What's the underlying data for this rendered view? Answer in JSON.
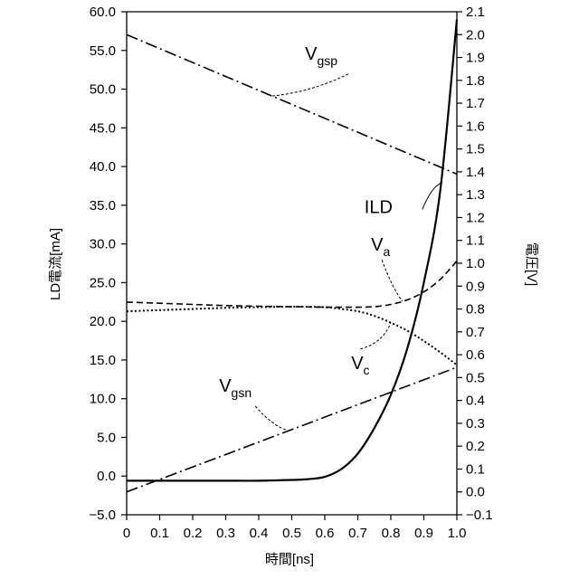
{
  "chart_data": {
    "type": "line",
    "xlabel": "時間[ns]",
    "ylabel_left": "LD電流[mA]",
    "ylabel_right": "電圧[V]",
    "xlim": [
      0,
      1.0
    ],
    "ylim_left": [
      -5.0,
      60.0
    ],
    "ylim_right": [
      -0.1,
      2.1
    ],
    "x_ticks": [
      "0",
      "0.1",
      "0.2",
      "0.3",
      "0.4",
      "0.5",
      "0.6",
      "0.7",
      "0.8",
      "0.9",
      "1.0"
    ],
    "y_left_ticks": [
      "60.0",
      "55.0",
      "50.0",
      "45.0",
      "40.0",
      "35.0",
      "30.0",
      "25.0",
      "20.0",
      "15.0",
      "10.0",
      "5.0",
      "0.0",
      "−5.0"
    ],
    "y_right_ticks": [
      "2.1",
      "2.0",
      "1.9",
      "1.8",
      "1.7",
      "1.6",
      "1.5",
      "1.4",
      "1.3",
      "1.2",
      "1.1",
      "1.0",
      "0.9",
      "0.8",
      "0.7",
      "0.6",
      "0.5",
      "0.4",
      "0.3",
      "0.2",
      "0.1",
      "0.0",
      "−0.1"
    ],
    "grid": false,
    "series": [
      {
        "name": "Vgsp",
        "label_main": "V",
        "label_sub": "gsp",
        "axis": "right",
        "style": "dashdot",
        "x": [
          0,
          1.0
        ],
        "y": [
          2.0,
          1.39
        ]
      },
      {
        "name": "Vgsn",
        "label_main": "V",
        "label_sub": "gsn",
        "axis": "right",
        "style": "dashdot",
        "x": [
          0,
          1.0
        ],
        "y": [
          0.0,
          0.545
        ]
      },
      {
        "name": "ILD",
        "label_main": "I",
        "label_sub": "LD",
        "axis": "left",
        "style": "solid",
        "x": [
          0,
          0.1,
          0.2,
          0.3,
          0.4,
          0.5,
          0.55,
          0.6,
          0.65,
          0.7,
          0.75,
          0.8,
          0.85,
          0.9,
          0.95,
          1.0
        ],
        "y": [
          -0.6,
          -0.6,
          -0.6,
          -0.6,
          -0.6,
          -0.5,
          -0.4,
          -0.1,
          0.9,
          2.9,
          6.2,
          10.5,
          16.5,
          25.0,
          37.0,
          59.0
        ]
      },
      {
        "name": "Va",
        "label_main": "V",
        "label_sub": "a",
        "axis": "right",
        "style": "dashed",
        "x": [
          0,
          0.1,
          0.2,
          0.3,
          0.4,
          0.5,
          0.6,
          0.7,
          0.75,
          0.8,
          0.85,
          0.9,
          0.95,
          1.0
        ],
        "y": [
          0.83,
          0.825,
          0.82,
          0.815,
          0.812,
          0.81,
          0.808,
          0.808,
          0.81,
          0.82,
          0.84,
          0.875,
          0.93,
          1.01
        ]
      },
      {
        "name": "Vc",
        "label_main": "V",
        "label_sub": "c",
        "axis": "right",
        "style": "dotted",
        "x": [
          0,
          0.1,
          0.2,
          0.3,
          0.4,
          0.5,
          0.6,
          0.65,
          0.7,
          0.75,
          0.8,
          0.85,
          0.9,
          0.95,
          1.0
        ],
        "y": [
          0.79,
          0.795,
          0.8,
          0.805,
          0.808,
          0.81,
          0.808,
          0.8,
          0.79,
          0.77,
          0.74,
          0.705,
          0.66,
          0.61,
          0.555
        ]
      }
    ]
  }
}
